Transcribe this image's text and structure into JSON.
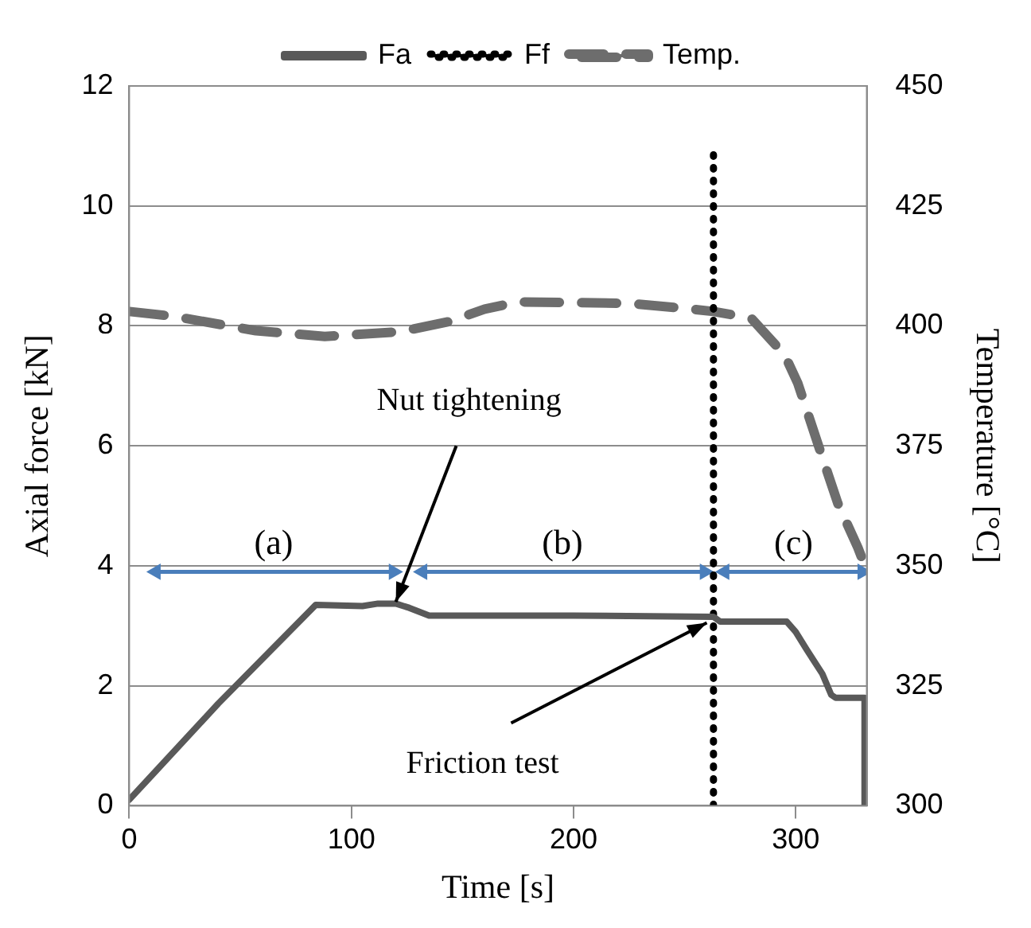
{
  "chart_data": {
    "type": "line",
    "xlabel": "Time [s]",
    "ylabel": "Axial force [kN]",
    "y2label": "Temperature [°C]",
    "xlim": [
      0,
      332
    ],
    "xticks": [
      0,
      100,
      200,
      300
    ],
    "ylim": [
      0,
      12
    ],
    "yticks": [
      0,
      2,
      4,
      6,
      8,
      10,
      12
    ],
    "y2lim": [
      300,
      450
    ],
    "y2ticks": [
      300,
      325,
      350,
      375,
      400,
      425,
      450
    ],
    "grid": "y",
    "legend": "top",
    "marker": "none",
    "series": [
      {
        "name": "Fa",
        "color": "#595959",
        "line_style": "solid",
        "x": [
          0,
          10,
          40,
          84,
          105,
          112,
          120,
          126,
          135,
          200,
          263,
          266,
          296,
          300,
          305,
          312,
          316,
          318,
          331,
          331
        ],
        "values": [
          0.1,
          0.5,
          1.7,
          3.35,
          3.33,
          3.37,
          3.37,
          3.3,
          3.17,
          3.17,
          3.15,
          3.07,
          3.07,
          2.9,
          2.6,
          2.2,
          1.85,
          1.8,
          1.8,
          0
        ]
      },
      {
        "name": "Ff",
        "color": "#000000",
        "line_style": "dotted",
        "x": [
          263,
          263
        ],
        "values": [
          0,
          10.9
        ]
      },
      {
        "color": "#4a7ebb",
        "line_style": "solid",
        "marker": "triangle",
        "x": [
          12,
          119
        ],
        "values": [
          3.9,
          3.9
        ]
      },
      {
        "color": "#4a7ebb",
        "line_style": "solid",
        "marker": "triangle",
        "x": [
          132,
          259
        ],
        "values": [
          3.9,
          3.9
        ]
      },
      {
        "color": "#4a7ebb",
        "line_style": "solid",
        "marker": "triangle",
        "x": [
          268,
          330
        ],
        "values": [
          3.9,
          3.9
        ]
      },
      {
        "name": "Temp.",
        "color": "#6d6d6d",
        "line_style": "dashed",
        "axis": "y2",
        "x": [
          0,
          20,
          57,
          88,
          122,
          144,
          160,
          175,
          225,
          249,
          263,
          280,
          295,
          301,
          311,
          319,
          328,
          332
        ],
        "values": [
          403,
          402,
          399,
          397.8,
          398.8,
          400.9,
          403.5,
          405,
          404.7,
          403.7,
          403,
          401.6,
          394,
          388,
          374,
          363,
          353.8,
          349
        ]
      }
    ],
    "annotations": [
      {
        "text": "Nut tightening",
        "x": 120,
        "y": 3.4
      },
      {
        "text": "Friction test",
        "x": 260,
        "y": 3.05
      },
      {
        "text": "(a)",
        "x": 65,
        "y": 3.9
      },
      {
        "text": "(b)",
        "x": 195,
        "y": 3.9
      },
      {
        "text": "(c)",
        "x": 299,
        "y": 3.9
      }
    ]
  }
}
